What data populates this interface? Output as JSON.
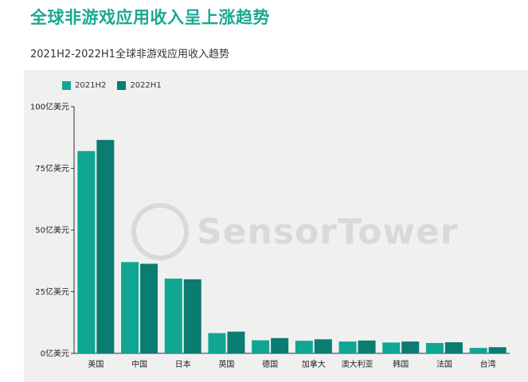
{
  "page": {
    "title": "全球非游戏应用收入呈上涨趋势"
  },
  "watermark": {
    "text": "SensorTower"
  },
  "chart_data": {
    "type": "bar",
    "title": "2021H2-2022H1全球非游戏应用收入趋势",
    "xlabel": "",
    "ylabel": "",
    "categories": [
      "美国",
      "中国",
      "日本",
      "英国",
      "德国",
      "加拿大",
      "澳大利亚",
      "韩国",
      "法国",
      "台湾"
    ],
    "series": [
      {
        "name": "2021H2",
        "color": "#11a593",
        "values": [
          82,
          37,
          30.3,
          8.2,
          5.3,
          5.1,
          4.8,
          4.4,
          4.2,
          2.2
        ]
      },
      {
        "name": "2022H1",
        "color": "#0b7c71",
        "values": [
          86.5,
          36.3,
          30,
          8.8,
          6.2,
          5.7,
          5.2,
          4.8,
          4.5,
          2.5
        ]
      }
    ],
    "ylim": [
      0,
      100
    ],
    "yticks": [
      {
        "value": 0,
        "label": "0亿美元"
      },
      {
        "value": 25,
        "label": "25亿美元"
      },
      {
        "value": 50,
        "label": "50亿美元"
      },
      {
        "value": 75,
        "label": "75亿美元"
      },
      {
        "value": 100,
        "label": "100亿美元"
      }
    ],
    "grid": false,
    "legend_position": "top-left"
  }
}
